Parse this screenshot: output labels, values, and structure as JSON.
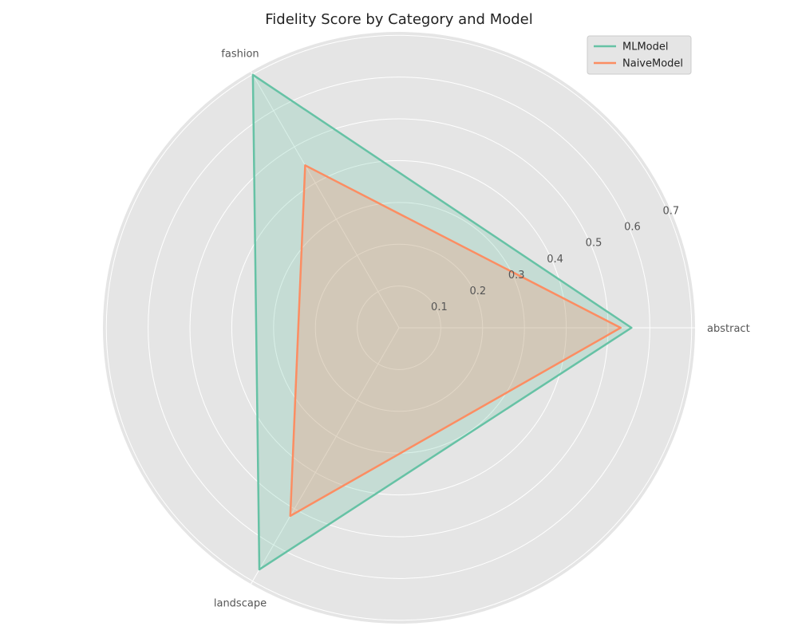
{
  "chart_data": {
    "type": "radar",
    "title": "Fidelity Score by Category and Model",
    "categories": [
      "abstract",
      "fashion",
      "landscape"
    ],
    "r_ticks": [
      0.1,
      0.2,
      0.3,
      0.4,
      0.5,
      0.6,
      0.7
    ],
    "r_tick_labels": [
      "0.1",
      "0.2",
      "0.3",
      "0.4",
      "0.5",
      "0.6",
      "0.7"
    ],
    "rlim": [
      0,
      0.71
    ],
    "grid": true,
    "legend_position": "top-right",
    "series": [
      {
        "name": "MLModel",
        "values": [
          0.556,
          0.699,
          0.668
        ],
        "color": "#66c2a5"
      },
      {
        "name": "NaiveModel",
        "values": [
          0.53,
          0.449,
          0.52
        ],
        "color": "#fc8d62"
      }
    ],
    "colors": {
      "plot_background": "#e5e5e5",
      "grid": "#ffffff",
      "text": "#555555"
    }
  }
}
